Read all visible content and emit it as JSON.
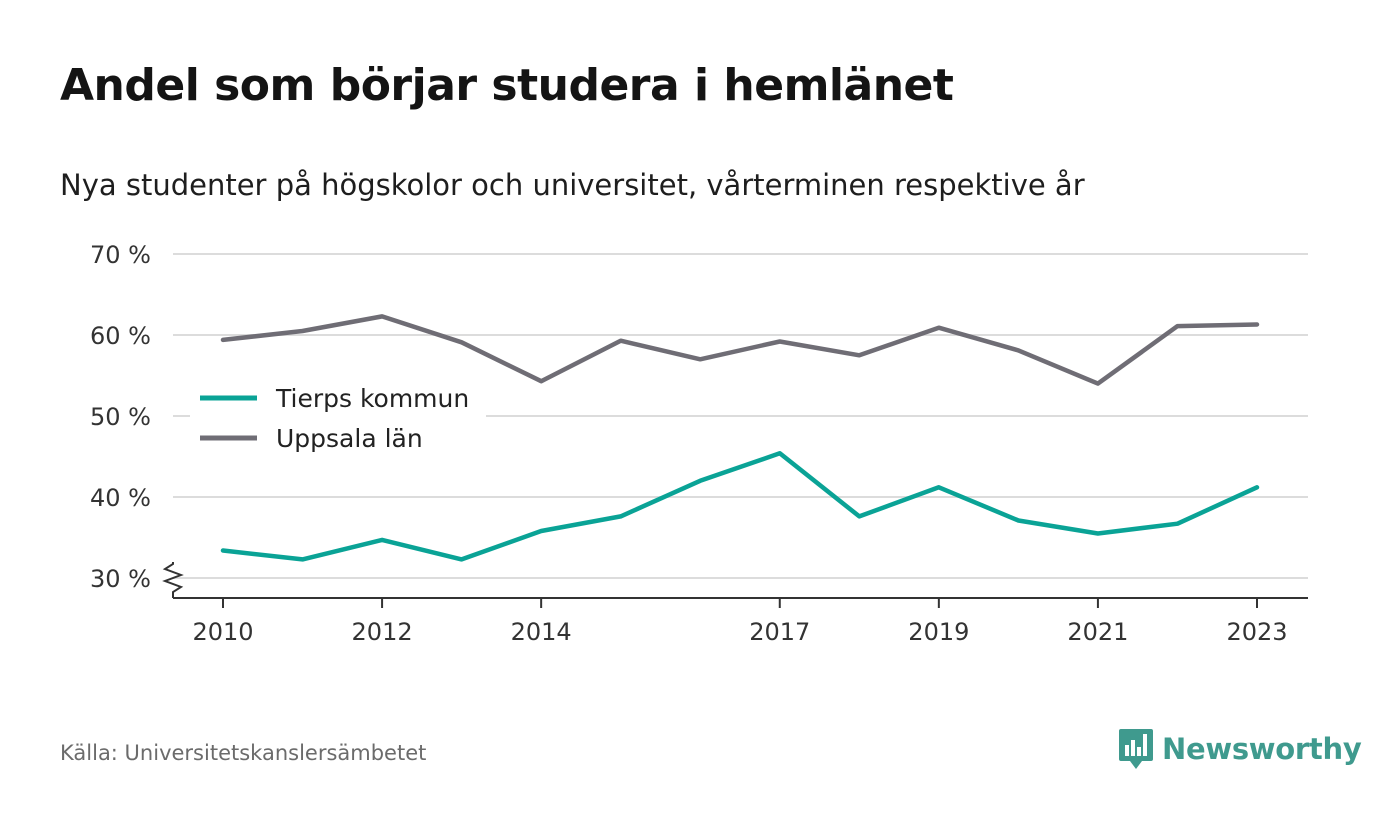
{
  "title": "Andel som börjar studera i hemlänet",
  "subtitle": "Nya studenter på högskolor och universitet, vårterminen respektive år",
  "source": "Källa: Universitetskanslersämbetet",
  "logo": {
    "text": "Newsworthy",
    "icon": "newsworthy-logo-icon"
  },
  "colors": {
    "tierp": "#0aa396",
    "uppsala": "#6f6d75",
    "grid": "#dcdcdc",
    "axis": "#333333"
  },
  "chart_data": {
    "type": "line",
    "x": [
      2010,
      2011,
      2012,
      2013,
      2014,
      2015,
      2016,
      2017,
      2018,
      2019,
      2020,
      2021,
      2022,
      2023
    ],
    "x_tick_values": [
      2010,
      2012,
      2014,
      2017,
      2019,
      2021,
      2023
    ],
    "x_tick_labels": [
      "2010",
      "2012",
      "2014",
      "2017",
      "2019",
      "2021",
      "2023"
    ],
    "y_ticks": [
      30,
      40,
      50,
      60,
      70
    ],
    "y_tick_labels": [
      "30 %",
      "40 %",
      "50 %",
      "60 %",
      "70 %"
    ],
    "ylim": [
      30,
      70
    ],
    "y_axis_break": true,
    "grid": true,
    "legend_position": "center-left",
    "series": [
      {
        "name": "Tierps kommun",
        "color": "#0aa396",
        "values": [
          33.4,
          32.3,
          34.7,
          32.3,
          35.8,
          37.6,
          42.0,
          45.4,
          37.6,
          41.2,
          37.1,
          35.5,
          36.7,
          41.2
        ]
      },
      {
        "name": "Uppsala län",
        "color": "#6f6d75",
        "values": [
          59.4,
          60.5,
          62.3,
          59.1,
          54.3,
          59.3,
          57.0,
          59.2,
          57.5,
          60.9,
          58.1,
          54.0,
          61.1,
          61.3
        ]
      }
    ]
  }
}
